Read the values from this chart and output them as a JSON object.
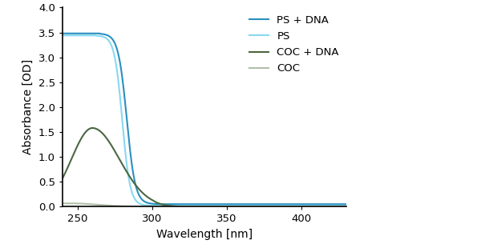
{
  "title": "",
  "xlabel": "Wavelength [nm]",
  "ylabel": "Absorbance [OD]",
  "xlim": [
    240,
    430
  ],
  "ylim": [
    0,
    4
  ],
  "xticks": [
    250,
    300,
    350,
    400
  ],
  "yticks": [
    0,
    0.5,
    1,
    1.5,
    2,
    2.5,
    3,
    3.5,
    4
  ],
  "series": [
    {
      "label": "PS + DNA",
      "color": "#2a8fbf",
      "linewidth": 1.5
    },
    {
      "label": "PS",
      "color": "#88d8f0",
      "linewidth": 1.5
    },
    {
      "label": "COC + DNA",
      "color": "#4a6741",
      "linewidth": 1.5
    },
    {
      "label": "COC",
      "color": "#b0bfa8",
      "linewidth": 1.5
    }
  ],
  "background_color": "#ffffff",
  "legend_fontsize": 9.5,
  "axis_fontsize": 10,
  "tick_fontsize": 9.5
}
